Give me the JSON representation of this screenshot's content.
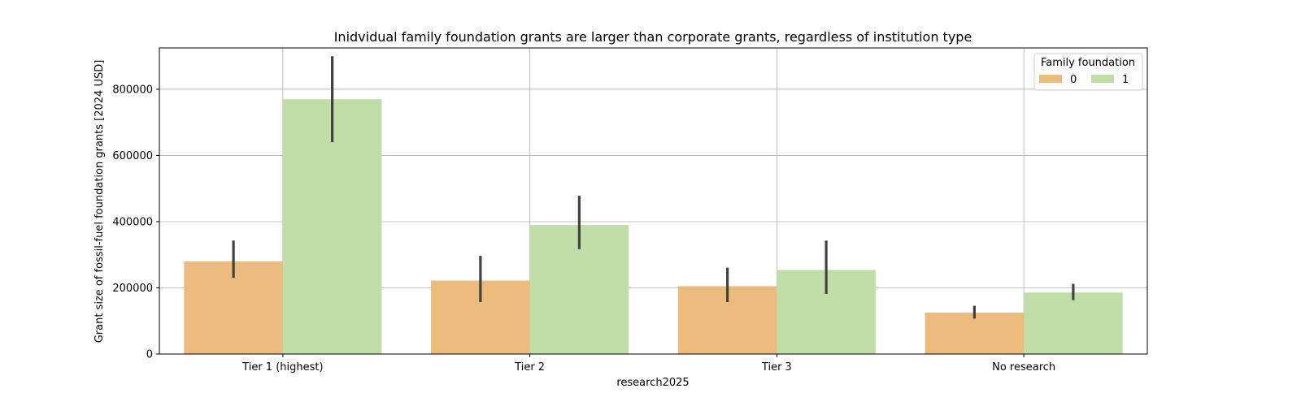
{
  "chart_data": {
    "type": "bar",
    "title": "Inidvidual family foundation grants are larger than corporate grants, regardless of institution type",
    "xlabel": "research2025",
    "ylabel": "Grant size of fossil-fuel foundation grants [2024 USD]",
    "categories": [
      "Tier 1 (highest)",
      "Tier 2",
      "Tier 3",
      "No research"
    ],
    "ylim": [
      0,
      925000
    ],
    "yticks": [
      0,
      200000,
      400000,
      600000,
      800000
    ],
    "ytick_labels": [
      "0",
      "200000",
      "400000",
      "600000",
      "800000"
    ],
    "grid": true,
    "legend": {
      "title": "Family foundation",
      "placement": "top-right"
    },
    "series": [
      {
        "name": "0",
        "color": "#ecbb7e",
        "values": [
          280000,
          222000,
          205000,
          125000
        ],
        "error_low": [
          230000,
          157000,
          157000,
          107000
        ],
        "error_high": [
          343000,
          297000,
          261000,
          146000
        ]
      },
      {
        "name": "1",
        "color": "#c1dea8",
        "values": [
          770000,
          390000,
          254000,
          186000
        ],
        "error_low": [
          640000,
          317000,
          182000,
          163000
        ],
        "error_high": [
          900000,
          478000,
          343000,
          212000
        ]
      }
    ]
  }
}
